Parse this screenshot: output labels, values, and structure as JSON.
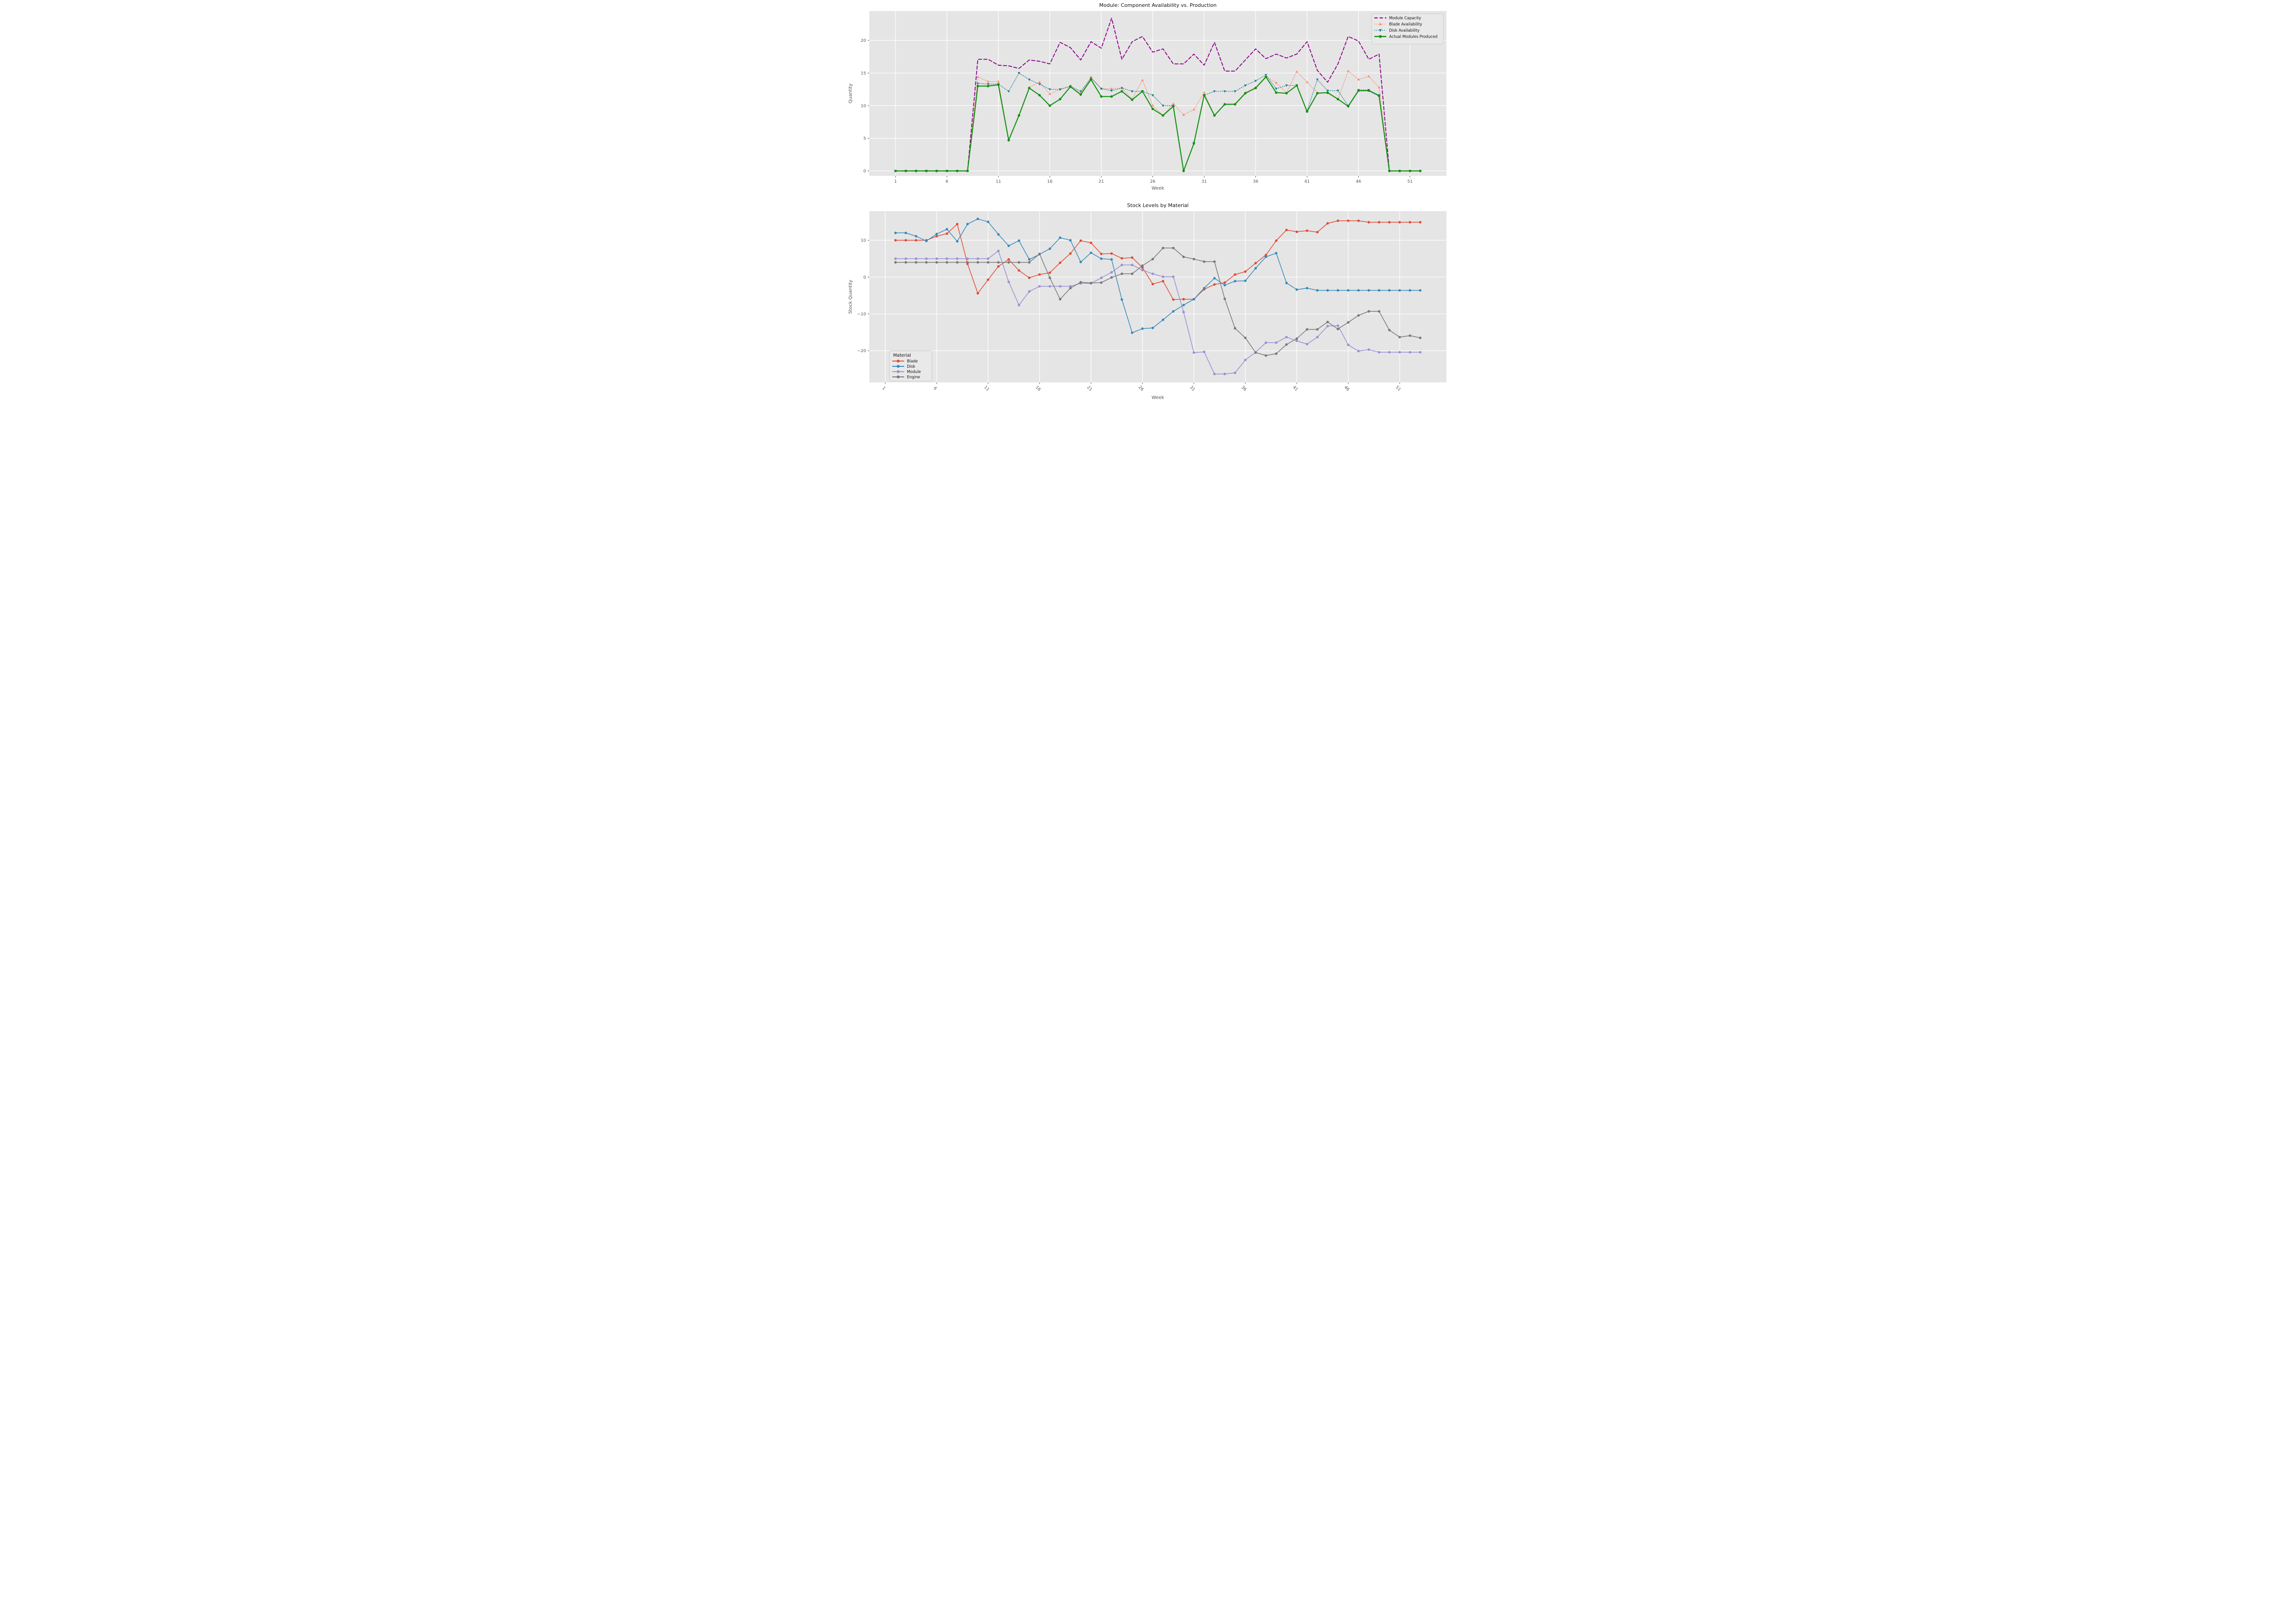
{
  "figure": {
    "plot_background": "#e5e5e5",
    "grid_color": "#ffffff",
    "tick_text_color": "#555555",
    "title_color": "#111111",
    "legend_border_color": "#cccccc",
    "legend_background": "#e9e9e9"
  },
  "chart_data": [
    {
      "id": "availability-vs-production",
      "type": "line",
      "title": "Module: Component Availability vs. Production",
      "xlabel": "Week",
      "ylabel": "Quantity",
      "x_ticks": [
        1,
        6,
        11,
        16,
        21,
        26,
        31,
        36,
        41,
        46,
        51
      ],
      "x_tick_labels": [
        "1",
        "6",
        "11",
        "16",
        "21",
        "26",
        "31",
        "36",
        "41",
        "46",
        "51"
      ],
      "y_ticks": [
        0,
        5,
        10,
        15,
        20
      ],
      "y_tick_labels": [
        "0",
        "5",
        "10",
        "15",
        "20"
      ],
      "x_tick_rotation": 0,
      "x_domain": [
        -1.55,
        54.55
      ],
      "y_domain": [
        -0.75,
        24.5
      ],
      "grid": true,
      "legend": {
        "position": "top-right",
        "title": ""
      },
      "week_start": 1,
      "series": [
        {
          "name": "Module Capacity",
          "color": "#8b008b",
          "line_style": "dashed",
          "marker": "none",
          "line_width": 1.9,
          "values": [
            0,
            0,
            0,
            0,
            0,
            0,
            0,
            0,
            17.1,
            17.1,
            16.2,
            16.1,
            15.7,
            17.0,
            16.8,
            16.4,
            19.7,
            18.9,
            17.0,
            19.8,
            18.8,
            23.4,
            17.1,
            19.8,
            20.6,
            18.2,
            18.7,
            16.4,
            16.4,
            17.9,
            16.2,
            19.7,
            15.3,
            15.3,
            17.0,
            18.7,
            17.2,
            17.9,
            17.3,
            17.9,
            19.8,
            15.4,
            13.6,
            16.4,
            20.6,
            19.9,
            17.1,
            17.9,
            0,
            0,
            0,
            0
          ]
        },
        {
          "name": "Blade Availability",
          "color": "#f98d6d",
          "line_style": "dotted",
          "marker": "triangle-up",
          "line_width": 1.3,
          "values": [
            0,
            0,
            0,
            0,
            0,
            0,
            0,
            0,
            14.4,
            13.7,
            13.7,
            4.7,
            8.6,
            12.8,
            13.6,
            11.8,
            12.5,
            12.9,
            11.9,
            14.4,
            12.6,
            12.6,
            12.7,
            11.0,
            13.9,
            10.0,
            8.5,
            10.3,
            8.6,
            9.4,
            12.0,
            8.5,
            10.3,
            10.3,
            12.0,
            12.8,
            14.5,
            13.5,
            12.0,
            15.2,
            13.6,
            12.0,
            11.9,
            11.0,
            15.3,
            14.0,
            14.5,
            12.8,
            0,
            0,
            0,
            0
          ]
        },
        {
          "name": "Disk Availability",
          "color": "#1f7f8e",
          "line_style": "dotted",
          "marker": "triangle-down",
          "line_width": 1.3,
          "values": [
            0,
            0,
            0,
            0,
            0,
            0,
            0,
            0,
            13.4,
            13.3,
            13.3,
            12.2,
            15.0,
            14.0,
            13.3,
            12.5,
            12.5,
            13.0,
            12.2,
            14.2,
            12.6,
            12.3,
            12.7,
            12.2,
            12.2,
            11.6,
            10.0,
            10.0,
            0.0,
            4.3,
            11.6,
            12.2,
            12.2,
            12.2,
            13.1,
            13.8,
            14.7,
            12.6,
            13.1,
            13.1,
            9.2,
            14.0,
            12.3,
            12.3,
            10.0,
            12.4,
            12.4,
            11.6,
            0,
            0,
            0,
            0
          ]
        },
        {
          "name": "Actual Modules Produced",
          "color": "#129112",
          "line_style": "solid",
          "marker": "circle",
          "line_width": 2.2,
          "values": [
            0,
            0,
            0,
            0,
            0,
            0,
            0,
            0,
            13.0,
            13.0,
            13.2,
            4.7,
            8.5,
            12.7,
            11.6,
            10.0,
            11.0,
            12.9,
            11.7,
            14.0,
            11.4,
            11.4,
            12.2,
            10.9,
            12.2,
            9.5,
            8.5,
            9.9,
            0.0,
            4.2,
            11.6,
            8.5,
            10.2,
            10.2,
            11.9,
            12.7,
            14.4,
            12.0,
            11.9,
            13.1,
            9.1,
            11.9,
            12.0,
            11.0,
            9.9,
            12.3,
            12.3,
            11.5,
            0,
            0,
            0,
            0
          ]
        }
      ]
    },
    {
      "id": "stock-levels",
      "type": "line",
      "title": "Stock Levels by Material",
      "xlabel": "Week",
      "ylabel": "Stock Quantity",
      "x_ticks": [
        1,
        6,
        11,
        16,
        21,
        26,
        31,
        36,
        41,
        46,
        51
      ],
      "x_tick_labels": [
        "1",
        "6",
        "11",
        "16",
        "21",
        "26",
        "31",
        "36",
        "41",
        "46",
        "51"
      ],
      "y_ticks": [
        -20,
        -10,
        0,
        10
      ],
      "y_tick_labels": [
        "−20",
        "−10",
        "0",
        "10"
      ],
      "x_tick_rotation": 45,
      "x_domain": [
        -0.55,
        55.55
      ],
      "y_domain": [
        -28.6,
        17.9
      ],
      "grid": true,
      "legend": {
        "position": "bottom-left",
        "title": "Material"
      },
      "week_start": 2,
      "series": [
        {
          "name": "Blade",
          "color": "#e24a33",
          "line_style": "solid",
          "marker": "circle",
          "line_width": 1.5,
          "values": [
            10,
            10,
            10,
            10,
            11.1,
            11.8,
            14.4,
            3.6,
            -4.4,
            -0.7,
            2.9,
            4.8,
            1.8,
            -0.2,
            0.7,
            1.2,
            3.9,
            6.4,
            9.9,
            9.3,
            6.3,
            6.4,
            5.1,
            5.3,
            2.6,
            -1.9,
            -1.1,
            -6.1,
            -6.0,
            -6.0,
            -3.3,
            -2.0,
            -1.5,
            0.7,
            1.5,
            3.8,
            6.0,
            9.9,
            12.8,
            12.3,
            12.6,
            12.2,
            14.6,
            15.3,
            15.3,
            15.3,
            14.9,
            14.9,
            14.9,
            14.9,
            14.9,
            14.9
          ]
        },
        {
          "name": "Disk",
          "color": "#348abd",
          "line_style": "solid",
          "marker": "circle",
          "line_width": 1.5,
          "values": [
            12,
            12,
            11.1,
            9.8,
            11.7,
            13.0,
            9.7,
            14.4,
            15.8,
            15.0,
            11.6,
            8.5,
            9.9,
            4.8,
            6.2,
            7.7,
            10.7,
            10.0,
            4.1,
            6.6,
            5.0,
            4.8,
            -6.1,
            -15.1,
            -14.0,
            -13.8,
            -11.6,
            -9.3,
            -7.6,
            -6.0,
            -3.0,
            -0.3,
            -2.2,
            -1.1,
            -1.0,
            2.4,
            5.5,
            6.5,
            -1.6,
            -3.4,
            -3.0,
            -3.6,
            -3.6,
            -3.6,
            -3.6,
            -3.6,
            -3.6,
            -3.6,
            -3.6,
            -3.6,
            -3.6,
            -3.6
          ]
        },
        {
          "name": "Module",
          "color": "#988ed5",
          "line_style": "solid",
          "marker": "circle",
          "line_width": 1.5,
          "values": [
            5,
            5,
            5,
            5,
            5,
            5,
            5,
            5,
            5,
            5,
            7.1,
            -1.3,
            -7.6,
            -3.9,
            -2.5,
            -2.5,
            -2.5,
            -2.5,
            -1.7,
            -1.7,
            -0.2,
            1.3,
            3.3,
            3.3,
            1.9,
            0.9,
            0.1,
            0.1,
            -9.5,
            -20.5,
            -20.3,
            -26.3,
            -26.3,
            -26.0,
            -22.5,
            -20.4,
            -17.8,
            -17.8,
            -16.3,
            -17.3,
            -18.2,
            -16.3,
            -13.3,
            -13.2,
            -18.4,
            -20.1,
            -19.7,
            -20.4,
            -20.4,
            -20.4,
            -20.4,
            -20.4
          ]
        },
        {
          "name": "Engine",
          "color": "#777777",
          "line_style": "solid",
          "marker": "circle",
          "line_width": 1.5,
          "values": [
            4,
            4,
            4,
            4,
            4,
            4,
            4,
            4,
            4,
            4,
            4,
            4,
            4,
            4,
            6.3,
            -0.2,
            -6.0,
            -3.0,
            -1.4,
            -1.6,
            -1.5,
            -0.1,
            0.9,
            0.9,
            3.1,
            4.9,
            7.9,
            7.9,
            5.5,
            4.9,
            4.2,
            4.2,
            -5.9,
            -13.9,
            -16.5,
            -20.5,
            -21.3,
            -20.8,
            -18.3,
            -16.7,
            -14.2,
            -14.2,
            -12.2,
            -14.1,
            -12.3,
            -10.4,
            -9.3,
            -9.3,
            -14.4,
            -16.3,
            -15.9,
            -16.5
          ]
        }
      ]
    }
  ]
}
